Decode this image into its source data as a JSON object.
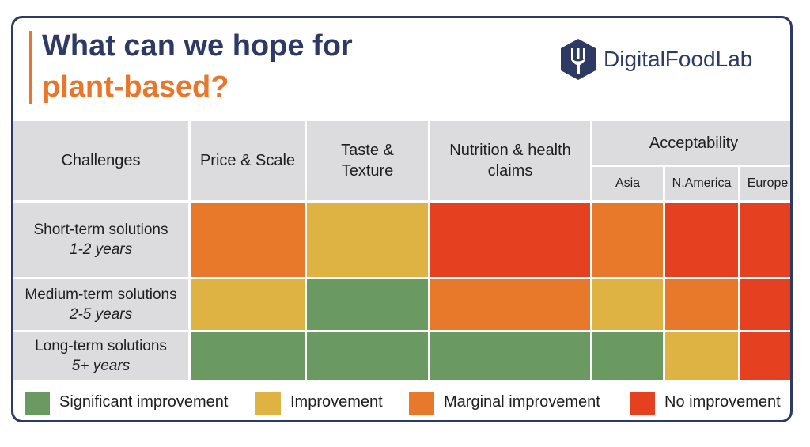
{
  "title_line1": "What can we hope for",
  "title_line2": "plant-based?",
  "logo_text": "DigitalFoodLab",
  "logo_icon": "fork-hexagon-icon",
  "chart_data": {
    "type": "heatmap",
    "corner_label": "Challenges",
    "columns": [
      {
        "label": "Price & Scale"
      },
      {
        "label": "Taste & Texture"
      },
      {
        "label": "Nutrition & health claims"
      },
      {
        "label": "Asia",
        "group": "Acceptability"
      },
      {
        "label": "N.America",
        "group": "Acceptability"
      },
      {
        "label": "Europe",
        "group": "Acceptability"
      }
    ],
    "group_label": "Acceptability",
    "rows": [
      {
        "label": "Short-term solutions",
        "years": "1-2 years",
        "values": [
          "Marginal improvement",
          "Improvement",
          "No improvement",
          "Marginal improvement",
          "No improvement",
          "No improvement"
        ]
      },
      {
        "label": "Medium-term solutions",
        "years": "2-5 years",
        "values": [
          "Improvement",
          "Significant improvement",
          "Marginal improvement",
          "Improvement",
          "Marginal improvement",
          "No improvement"
        ]
      },
      {
        "label": "Long-term solutions",
        "years": "5+ years",
        "values": [
          "Significant improvement",
          "Significant improvement",
          "Significant improvement",
          "Significant improvement",
          "Improvement",
          "No improvement"
        ]
      }
    ],
    "legend": [
      {
        "label": "Significant improvement",
        "color": "#6a9a62"
      },
      {
        "label": "Improvement",
        "color": "#dfb343"
      },
      {
        "label": "Marginal improvement",
        "color": "#e8792b"
      },
      {
        "label": "No improvement",
        "color": "#e5401f"
      }
    ]
  }
}
